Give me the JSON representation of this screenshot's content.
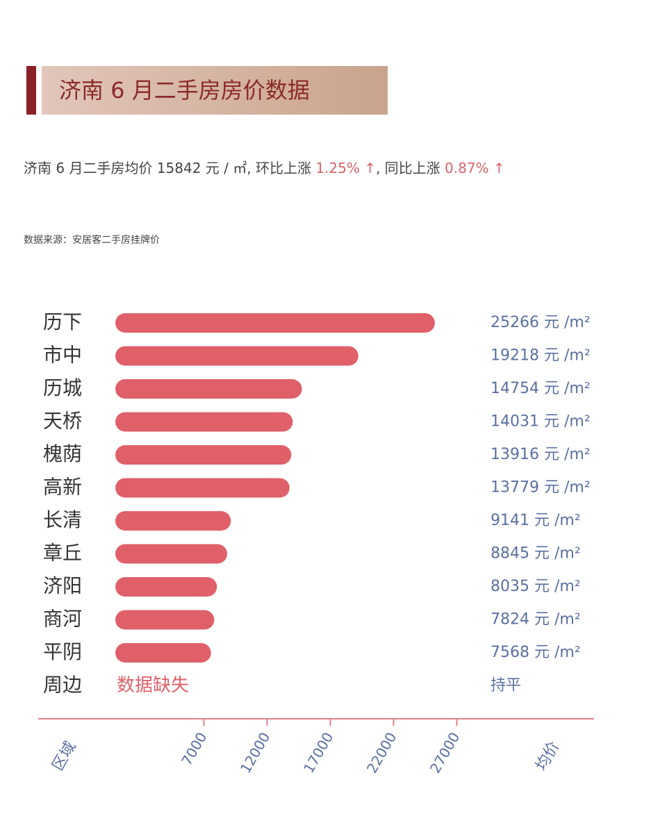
{
  "header": {
    "title": "济南 6 月二手房房价数据",
    "summary": [
      "济南 6 月二手房均价 15842 元 / ㎡, 环比上涨 ",
      "1.25% ↑",
      ", 同比上涨 ",
      "0.87% ↑"
    ],
    "source": "数据来源：安居客二手房挂牌价"
  },
  "chart_data": {
    "type": "bar",
    "orientation": "horizontal",
    "color": "#e0606a",
    "categories": [
      "历下",
      "市中",
      "历城",
      "天桥",
      "槐荫",
      "高新",
      "长清",
      "章丘",
      "济阳",
      "商河",
      "平阴",
      "周边"
    ],
    "values": [
      25266,
      19218,
      14754,
      14031,
      13916,
      13779,
      9141,
      8845,
      8035,
      7824,
      7568,
      null
    ],
    "value_labels": [
      "25266 元 /m²",
      "19218 元 /m²",
      "14754 元 /m²",
      "14031 元 /m²",
      "13916 元 /m²",
      "13779 元 /m²",
      "9141 元 /m²",
      "8845 元 /m²",
      "8035 元 /m²",
      "7824 元 /m²",
      "7568 元 /m²",
      "持平"
    ],
    "missing_text": "数据缺失",
    "xlim": [
      0,
      30000
    ],
    "xticks": [
      7000,
      12000,
      17000,
      22000,
      27000
    ],
    "category_axis_label": "区域",
    "value_axis_label": "均价"
  }
}
